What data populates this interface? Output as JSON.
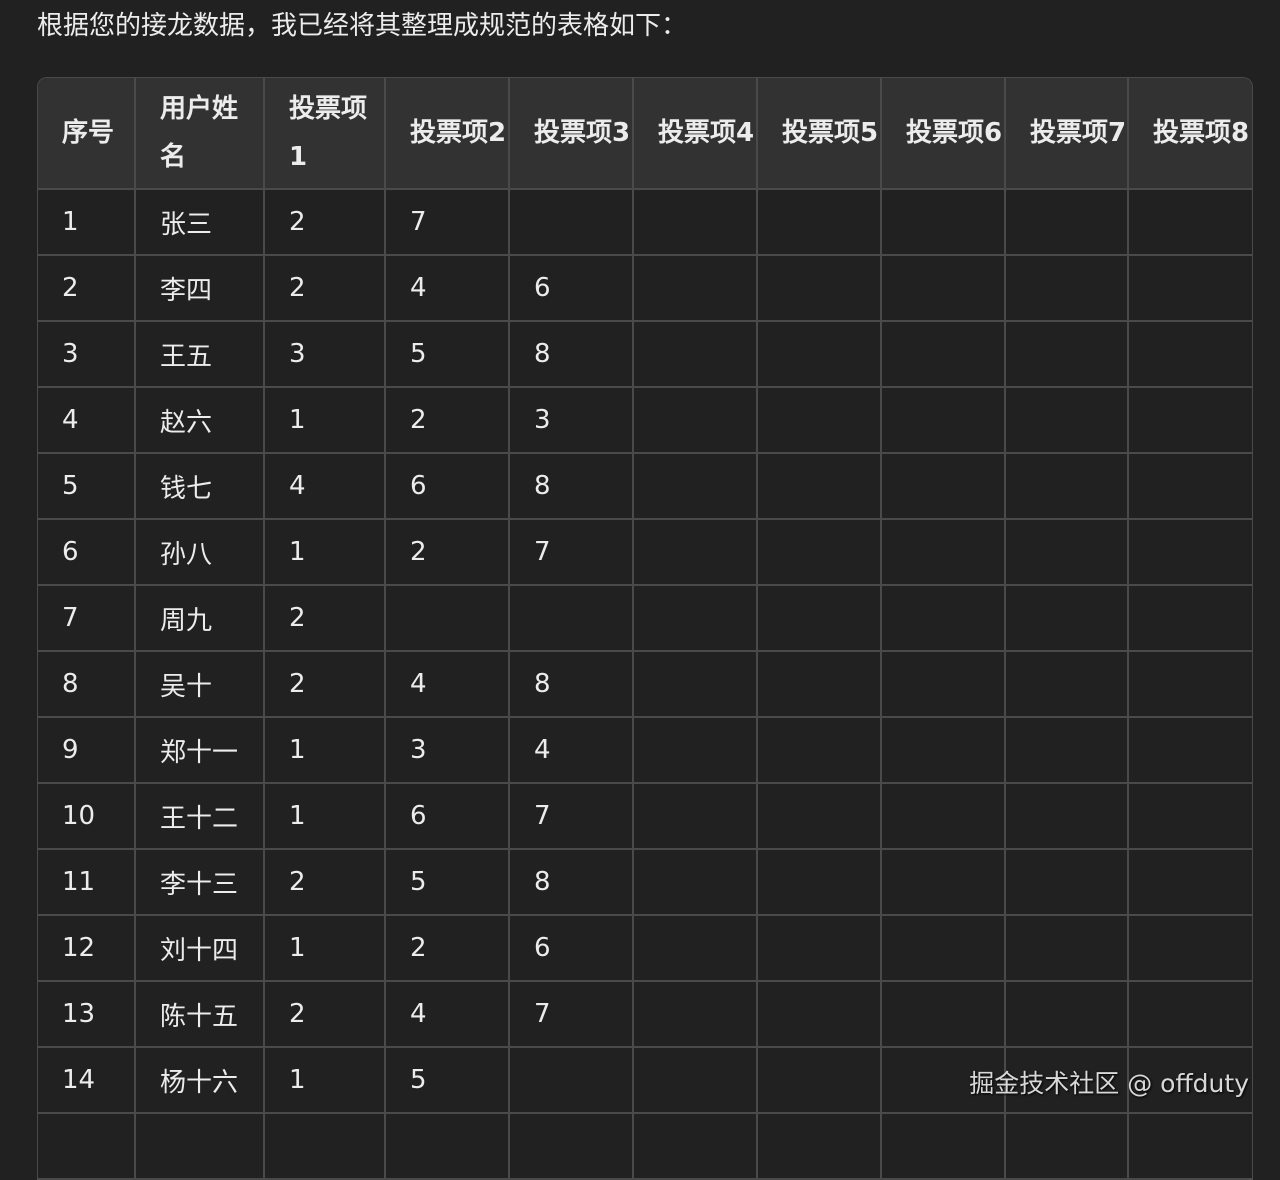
{
  "intro": "根据您的接龙数据，我已经将其整理成规范的表格如下：",
  "table": {
    "headers": [
      "序号",
      "用户姓名",
      "投票项1",
      "投票项2",
      "投票项3",
      "投票项4",
      "投票项5",
      "投票项6",
      "投票项7",
      "投票项8"
    ],
    "rows": [
      [
        "1",
        "张三",
        "2",
        "7",
        "",
        "",
        "",
        "",
        "",
        ""
      ],
      [
        "2",
        "李四",
        "2",
        "4",
        "6",
        "",
        "",
        "",
        "",
        ""
      ],
      [
        "3",
        "王五",
        "3",
        "5",
        "8",
        "",
        "",
        "",
        "",
        ""
      ],
      [
        "4",
        "赵六",
        "1",
        "2",
        "3",
        "",
        "",
        "",
        "",
        ""
      ],
      [
        "5",
        "钱七",
        "4",
        "6",
        "8",
        "",
        "",
        "",
        "",
        ""
      ],
      [
        "6",
        "孙八",
        "1",
        "2",
        "7",
        "",
        "",
        "",
        "",
        ""
      ],
      [
        "7",
        "周九",
        "2",
        "",
        "",
        "",
        "",
        "",
        "",
        ""
      ],
      [
        "8",
        "吴十",
        "2",
        "4",
        "8",
        "",
        "",
        "",
        "",
        ""
      ],
      [
        "9",
        "郑十一",
        "1",
        "3",
        "4",
        "",
        "",
        "",
        "",
        ""
      ],
      [
        "10",
        "王十二",
        "1",
        "6",
        "7",
        "",
        "",
        "",
        "",
        ""
      ],
      [
        "11",
        "李十三",
        "2",
        "5",
        "8",
        "",
        "",
        "",
        "",
        ""
      ],
      [
        "12",
        "刘十四",
        "1",
        "2",
        "6",
        "",
        "",
        "",
        "",
        ""
      ],
      [
        "13",
        "陈十五",
        "2",
        "4",
        "7",
        "",
        "",
        "",
        "",
        ""
      ],
      [
        "14",
        "杨十六",
        "1",
        "5",
        "",
        "",
        "",
        "",
        "",
        ""
      ]
    ]
  },
  "watermark": "掘金技术社区 @ offduty"
}
